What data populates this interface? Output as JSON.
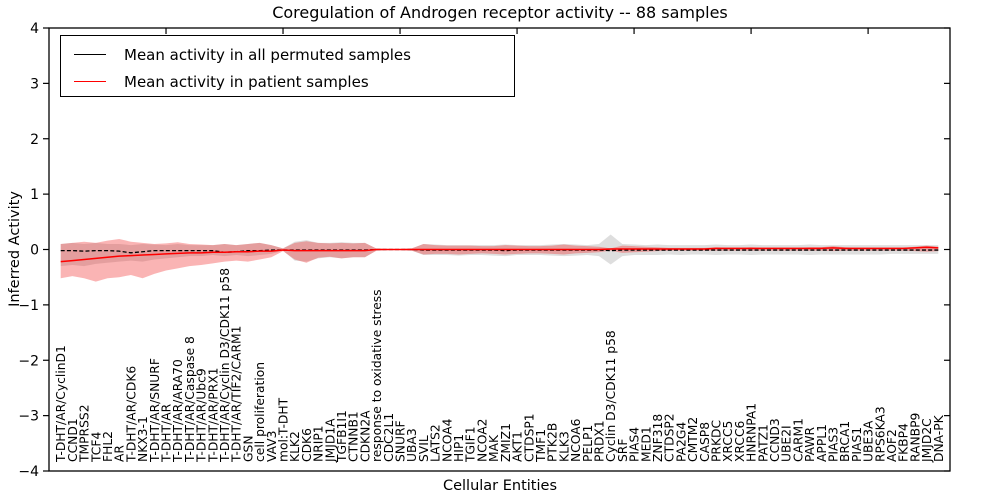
{
  "title": "Coregulation of Androgen receptor activity -- 88 samples",
  "legend": {
    "items": [
      {
        "label": "Mean activity in all permuted samples",
        "color": "#000000"
      },
      {
        "label": "Mean activity in patient samples",
        "color": "#ff0000"
      }
    ]
  },
  "colors": {
    "frame": "#000000",
    "background": "#ffffff",
    "permuted_band": "rgba(0,0,0,0.13)",
    "patient_band": "rgba(240,40,40,0.35)"
  },
  "chart_data": {
    "type": "line",
    "title": "Coregulation of Androgen receptor activity -- 88 samples",
    "xlabel": "Cellular Entities",
    "ylabel": "Inferred Activity",
    "ylim": [
      -4,
      4
    ],
    "xlim": [
      0,
      77
    ],
    "grid": false,
    "legend_position": "upper left",
    "y_ticks": [
      "4",
      "3",
      "2",
      "1",
      "0",
      "−1",
      "−2",
      "−3",
      "−4"
    ],
    "y_tick_values": [
      4,
      3,
      2,
      1,
      0,
      -1,
      -2,
      -3,
      -4
    ],
    "x_major_tick_values": [
      10,
      20,
      30,
      40,
      50,
      60,
      70
    ],
    "categories": [
      "T-DHT/AR/CyclinD1",
      "CCND1",
      "TMPRSS2",
      "TCF4",
      "FHL2",
      "AR",
      "T-DHT/AR/CDK6",
      "NKX3-1",
      "T-DHT/AR/SNURF",
      "T-DHT/AR",
      "T-DHT/AR/ARA70",
      "T-DHT/AR/Caspase 8",
      "T-DHT/AR/Ubc9",
      "T-DHT/AR/PRX1",
      "T-DHT/AR/Cyclin D3/CDK11 p58",
      "T-DHT/AR/TIF2/CARM1",
      "GSN",
      "cell proliferation",
      "VAV3",
      "mol:T-DHT",
      "KLK2",
      "CDK6",
      "NRIP1",
      "JMJD1A",
      "TGFB1I1",
      "CTNNB1",
      "CDKN2A",
      "response to oxidative stress",
      "CDC2L1",
      "SNURF",
      "UBA3",
      "SVIL",
      "LATS2",
      "NCOA4",
      "HIP1",
      "TGIF1",
      "NCOA2",
      "MAK",
      "ZMIZ1",
      "AKT1",
      "CTDSP1",
      "TMF1",
      "PTK2B",
      "KLK3",
      "NCOA6",
      "PELP1",
      "PRDX1",
      "Cyclin D3/CDK11 p58",
      "SRF",
      "PIAS4",
      "MED1",
      "ZNF318",
      "CTDSP2",
      "PA2G4",
      "CMTM2",
      "CASP8",
      "PRKDC",
      "XRCC5",
      "XRCC6",
      "HNRNPA1",
      "PATZ1",
      "CCND3",
      "UBE2I",
      "CARM1",
      "PAWR",
      "APPL1",
      "PIAS3",
      "BRCA1",
      "PIAS1",
      "UBE3A",
      "RPS6KA3",
      "AOF2",
      "FKBP4",
      "RANBP9",
      "JMJD2C",
      "DNA-PK"
    ],
    "series": [
      {
        "name": "Mean activity in all permuted samples",
        "color": "#000000",
        "style": "dashed",
        "values": [
          -0.02,
          -0.02,
          -0.03,
          -0.02,
          -0.02,
          -0.03,
          -0.06,
          -0.04,
          -0.02,
          -0.02,
          -0.02,
          -0.02,
          -0.02,
          -0.02,
          -0.05,
          -0.04,
          -0.02,
          -0.02,
          -0.01,
          -0.01,
          -0.01,
          -0.01,
          -0.01,
          -0.01,
          -0.01,
          -0.01,
          -0.01,
          0,
          0,
          0,
          0,
          -0.01,
          -0.01,
          -0.01,
          -0.01,
          -0.01,
          -0.01,
          -0.01,
          -0.02,
          -0.01,
          -0.01,
          -0.01,
          -0.01,
          -0.01,
          -0.01,
          -0.01,
          -0.01,
          -0.02,
          -0.01,
          -0.01,
          -0.01,
          -0.01,
          -0.01,
          -0.01,
          -0.01,
          -0.01,
          -0.01,
          -0.01,
          -0.01,
          -0.01,
          -0.01,
          -0.01,
          -0.01,
          -0.01,
          -0.01,
          -0.01,
          -0.01,
          -0.01,
          -0.01,
          -0.01,
          -0.01,
          -0.01,
          -0.01,
          -0.01,
          -0.01,
          -0.01
        ]
      },
      {
        "name": "Mean activity in patient samples",
        "color": "#ff0000",
        "style": "solid",
        "values": [
          -0.22,
          -0.2,
          -0.18,
          -0.16,
          -0.14,
          -0.12,
          -0.11,
          -0.1,
          -0.09,
          -0.08,
          -0.07,
          -0.06,
          -0.06,
          -0.05,
          -0.05,
          -0.04,
          -0.04,
          -0.03,
          -0.03,
          -0.01,
          -0.02,
          -0.02,
          -0.02,
          -0.02,
          -0.02,
          -0.02,
          -0.02,
          0,
          0,
          0,
          0,
          0,
          0,
          0,
          0,
          0,
          0,
          0,
          0,
          0,
          0,
          0,
          0,
          0,
          0,
          0,
          0,
          0.01,
          0.01,
          0.01,
          0.01,
          0.01,
          0.01,
          0.01,
          0.01,
          0.01,
          0.02,
          0.02,
          0.02,
          0.02,
          0.02,
          0.02,
          0.02,
          0.02,
          0.02,
          0.02,
          0.03,
          0.02,
          0.02,
          0.02,
          0.02,
          0.02,
          0.02,
          0.03,
          0.04,
          0.03
        ]
      }
    ],
    "bands": [
      {
        "name": "permuted samples spread",
        "color": "rgba(0,0,0,0.13)",
        "upper": [
          0.1,
          0.12,
          0.1,
          0.12,
          0.1,
          0.1,
          0.08,
          0.1,
          0.09,
          0.08,
          0.1,
          0.08,
          0.08,
          0.08,
          0.1,
          0.08,
          0.1,
          0.12,
          0.08,
          0.02,
          0.14,
          0.17,
          0.12,
          0.12,
          0.13,
          0.12,
          0.12,
          0.015,
          0.01,
          0.01,
          0.02,
          0.1,
          0.09,
          0.08,
          0.08,
          0.08,
          0.08,
          0.08,
          0.09,
          0.08,
          0.08,
          0.08,
          0.09,
          0.1,
          0.09,
          0.08,
          0.1,
          0.27,
          0.1,
          0.09,
          0.08,
          0.09,
          0.08,
          0.08,
          0.08,
          0.08,
          0.09,
          0.08,
          0.08,
          0.09,
          0.08,
          0.08,
          0.08,
          0.08,
          0.09,
          0.08,
          0.08,
          0.08,
          0.08,
          0.08,
          0.08,
          0.08,
          0.08,
          0.08,
          0.08,
          0.08
        ],
        "lower": [
          -0.3,
          -0.28,
          -0.3,
          -0.26,
          -0.24,
          -0.22,
          -0.2,
          -0.22,
          -0.18,
          -0.16,
          -0.14,
          -0.12,
          -0.12,
          -0.1,
          -0.12,
          -0.1,
          -0.12,
          -0.1,
          -0.08,
          -0.02,
          -0.2,
          -0.22,
          -0.16,
          -0.14,
          -0.16,
          -0.14,
          -0.14,
          -0.015,
          -0.01,
          -0.01,
          -0.02,
          -0.1,
          -0.1,
          -0.1,
          -0.11,
          -0.1,
          -0.1,
          -0.11,
          -0.12,
          -0.1,
          -0.1,
          -0.1,
          -0.11,
          -0.12,
          -0.11,
          -0.1,
          -0.12,
          -0.27,
          -0.12,
          -0.1,
          -0.1,
          -0.1,
          -0.09,
          -0.1,
          -0.09,
          -0.09,
          -0.1,
          -0.09,
          -0.09,
          -0.1,
          -0.09,
          -0.09,
          -0.09,
          -0.09,
          -0.1,
          -0.09,
          -0.09,
          -0.09,
          -0.09,
          -0.09,
          -0.09,
          -0.08,
          -0.08,
          -0.08,
          -0.08,
          -0.08
        ]
      },
      {
        "name": "patient samples spread",
        "color": "rgba(240,40,40,0.35)",
        "upper": [
          0.1,
          0.12,
          0.14,
          0.12,
          0.16,
          0.19,
          0.14,
          0.12,
          0.1,
          0.11,
          0.13,
          0.1,
          0.09,
          0.08,
          0.1,
          0.08,
          0.1,
          0.12,
          0.08,
          0.02,
          0.12,
          0.15,
          0.12,
          0.11,
          0.12,
          0.11,
          0.12,
          0.015,
          0.01,
          0.01,
          0.02,
          0.1,
          0.08,
          0.07,
          0.07,
          0.07,
          0.06,
          0.06,
          0.08,
          0.07,
          0.06,
          0.06,
          0.07,
          0.09,
          0.07,
          0.06,
          0.05,
          0.02,
          0.07,
          0.06,
          0.05,
          0.04,
          0.03,
          0.03,
          0.03,
          0.03,
          0.04,
          0.03,
          0.03,
          0.04,
          0.03,
          0.03,
          0.03,
          0.03,
          0.04,
          0.04,
          0.06,
          0.04,
          0.03,
          0.03,
          0.03,
          0.03,
          0.03,
          0.05,
          0.07,
          0.05
        ],
        "lower": [
          -0.52,
          -0.48,
          -0.52,
          -0.58,
          -0.52,
          -0.5,
          -0.46,
          -0.52,
          -0.44,
          -0.38,
          -0.34,
          -0.3,
          -0.28,
          -0.25,
          -0.22,
          -0.2,
          -0.22,
          -0.18,
          -0.14,
          -0.03,
          -0.18,
          -0.24,
          -0.15,
          -0.13,
          -0.16,
          -0.14,
          -0.14,
          -0.02,
          -0.01,
          -0.01,
          -0.02,
          -0.09,
          -0.08,
          -0.08,
          -0.09,
          -0.08,
          -0.07,
          -0.08,
          -0.09,
          -0.08,
          -0.07,
          -0.07,
          -0.08,
          -0.09,
          -0.07,
          -0.06,
          -0.05,
          -0.02,
          -0.06,
          -0.05,
          -0.04,
          -0.03,
          -0.02,
          -0.02,
          -0.02,
          -0.02,
          -0.02,
          -0.02,
          -0.02,
          -0.02,
          -0.02,
          -0.02,
          -0.02,
          -0.02,
          -0.02,
          -0.02,
          -0.03,
          -0.02,
          -0.02,
          -0.02,
          -0.02,
          -0.02,
          -0.02,
          -0.03,
          -0.04,
          -0.03
        ]
      }
    ]
  }
}
